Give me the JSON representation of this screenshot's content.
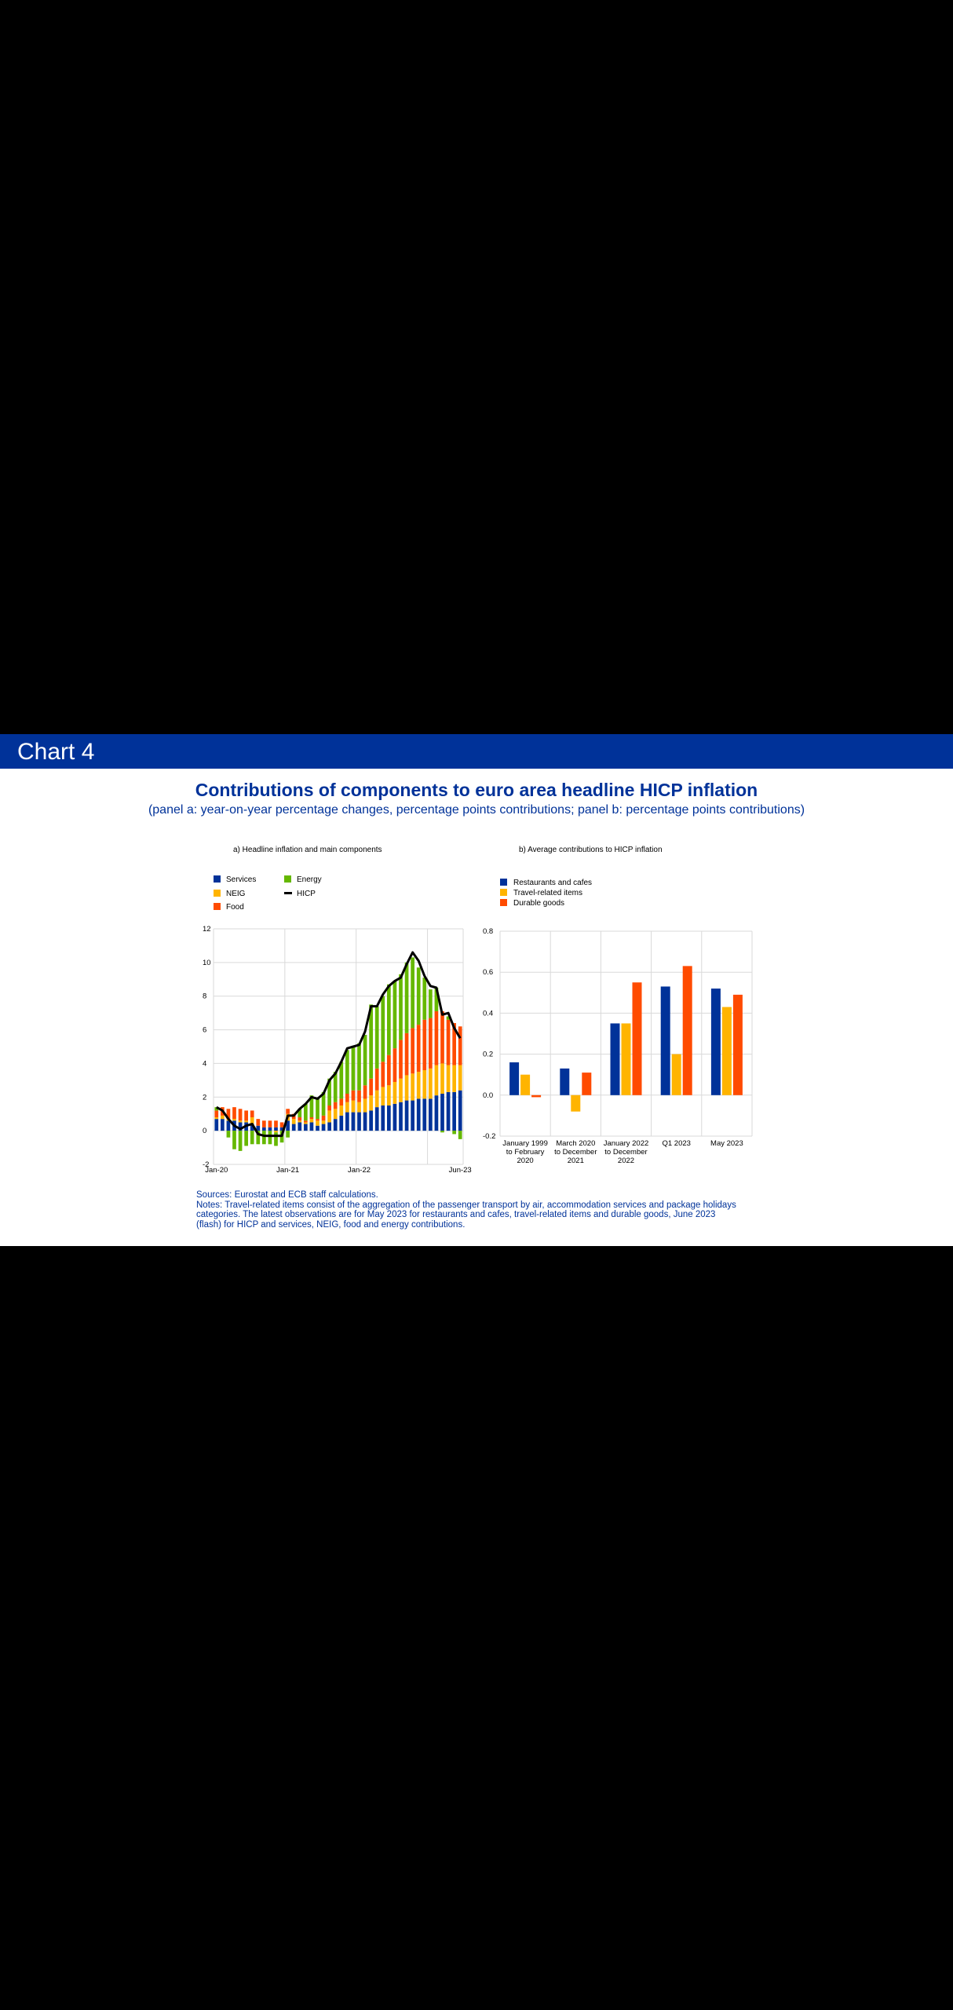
{
  "header": {
    "label": "Chart 4"
  },
  "title": "Contributions of components to euro area headline HICP inflation",
  "subtitle": "(panel a: year-on-year percentage changes, percentage points contributions; panel b: percentage points contributions)",
  "colors": {
    "header_bg": "#003299",
    "services": "#003299",
    "neig": "#FFB400",
    "food": "#FF4B00",
    "energy": "#65B800",
    "hicp": "#000000",
    "restaurants": "#003299",
    "travel": "#FFB400",
    "durable": "#FF4B00"
  },
  "chart_data": [
    {
      "type": "stacked-bar-line",
      "title": "a) Headline inflation and main components",
      "legend": [
        "Services",
        "NEIG",
        "Food",
        "Energy",
        "HICP"
      ],
      "ylim": [
        -2,
        12
      ],
      "yticks": [
        "12",
        "10",
        "8",
        "6",
        "4",
        "2",
        "0",
        "-2"
      ],
      "xtick_labels": [
        "Jan-20",
        "Jan-21",
        "Jan-22",
        "Jun-23"
      ],
      "x": [
        "2020-01",
        "2020-02",
        "2020-03",
        "2020-04",
        "2020-05",
        "2020-06",
        "2020-07",
        "2020-08",
        "2020-09",
        "2020-10",
        "2020-11",
        "2020-12",
        "2021-01",
        "2021-02",
        "2021-03",
        "2021-04",
        "2021-05",
        "2021-06",
        "2021-07",
        "2021-08",
        "2021-09",
        "2021-10",
        "2021-11",
        "2021-12",
        "2022-01",
        "2022-02",
        "2022-03",
        "2022-04",
        "2022-05",
        "2022-06",
        "2022-07",
        "2022-08",
        "2022-09",
        "2022-10",
        "2022-11",
        "2022-12",
        "2023-01",
        "2023-02",
        "2023-03",
        "2023-04",
        "2023-05",
        "2023-06"
      ],
      "series": [
        {
          "name": "Services",
          "values": [
            0.7,
            0.7,
            0.6,
            0.6,
            0.5,
            0.5,
            0.4,
            0.3,
            0.2,
            0.2,
            0.2,
            0.2,
            0.6,
            0.4,
            0.5,
            0.4,
            0.5,
            0.3,
            0.4,
            0.5,
            0.7,
            0.9,
            1.1,
            1.1,
            1.1,
            1.1,
            1.2,
            1.4,
            1.5,
            1.5,
            1.6,
            1.7,
            1.8,
            1.8,
            1.9,
            1.9,
            1.9,
            2.1,
            2.2,
            2.3,
            2.3,
            2.4
          ]
        },
        {
          "name": "NEIG",
          "values": [
            0.1,
            0.2,
            0.1,
            0.1,
            0.1,
            0.1,
            0.4,
            -0.0,
            -0.0,
            -0.0,
            -0.1,
            0.0,
            0.4,
            0.3,
            0.1,
            0.1,
            0.2,
            0.3,
            0.2,
            0.7,
            0.6,
            0.6,
            0.6,
            0.7,
            0.6,
            0.8,
            0.9,
            1.0,
            1.1,
            1.2,
            1.3,
            1.4,
            1.5,
            1.6,
            1.6,
            1.7,
            1.8,
            1.8,
            1.8,
            1.6,
            1.6,
            1.5
          ]
        },
        {
          "name": "Food",
          "values": [
            0.4,
            0.5,
            0.6,
            0.7,
            0.7,
            0.6,
            0.4,
            0.4,
            0.4,
            0.4,
            0.4,
            0.3,
            0.3,
            0.3,
            0.2,
            0.1,
            0.1,
            0.1,
            0.3,
            0.3,
            0.4,
            0.4,
            0.5,
            0.6,
            0.7,
            0.8,
            1.0,
            1.3,
            1.5,
            1.8,
            2.0,
            2.3,
            2.5,
            2.7,
            2.8,
            3.0,
            3.0,
            3.2,
            3.1,
            2.7,
            2.5,
            2.3
          ]
        },
        {
          "name": "Energy",
          "values": [
            0.2,
            -0.0,
            -0.4,
            -1.1,
            -1.2,
            -0.9,
            -0.8,
            -0.8,
            -0.8,
            -0.8,
            -0.8,
            -0.7,
            -0.4,
            -0.0,
            0.5,
            1.0,
            1.3,
            1.2,
            1.4,
            1.6,
            1.8,
            2.2,
            2.6,
            2.6,
            2.8,
            3.0,
            4.4,
            3.7,
            3.9,
            4.2,
            4.0,
            3.9,
            4.2,
            4.2,
            3.4,
            2.5,
            1.7,
            1.4,
            -0.1,
            0.2,
            -0.2,
            -0.5
          ]
        }
      ],
      "line": {
        "name": "HICP",
        "values": [
          1.4,
          1.2,
          0.7,
          0.3,
          0.1,
          0.3,
          0.4,
          -0.2,
          -0.3,
          -0.3,
          -0.3,
          -0.3,
          0.9,
          0.9,
          1.3,
          1.6,
          2.0,
          1.9,
          2.2,
          3.0,
          3.4,
          4.1,
          4.9,
          5.0,
          5.1,
          5.9,
          7.4,
          7.4,
          8.1,
          8.6,
          8.9,
          9.1,
          9.9,
          10.6,
          10.1,
          9.2,
          8.6,
          8.5,
          6.9,
          7.0,
          6.1,
          5.5
        ]
      }
    },
    {
      "type": "bar",
      "title": "b) Average contributions to HICP inflation",
      "legend": [
        "Restaurants and cafes",
        "Travel-related items",
        "Durable goods"
      ],
      "ylim": [
        -0.2,
        0.8
      ],
      "yticks": [
        "0.8",
        "0.6",
        "0.4",
        "0.2",
        "0.0",
        "-0.2"
      ],
      "categories": [
        [
          "January 1999",
          "to February",
          "2020"
        ],
        [
          "March 2020",
          "to December",
          "2021"
        ],
        [
          "January 2022",
          "to December",
          "2022"
        ],
        [
          "Q1 2023"
        ],
        [
          "May 2023"
        ]
      ],
      "series": [
        {
          "name": "Restaurants and cafes",
          "values": [
            0.16,
            0.13,
            0.35,
            0.53,
            0.52
          ]
        },
        {
          "name": "Travel-related items",
          "values": [
            0.1,
            -0.08,
            0.35,
            0.2,
            0.43
          ]
        },
        {
          "name": "Durable goods",
          "values": [
            -0.01,
            0.11,
            0.55,
            0.63,
            0.49
          ]
        }
      ]
    }
  ],
  "notes": {
    "sources": "Sources: Eurostat and ECB staff calculations.",
    "line1": "Notes: Travel-related items consist of the aggregation of the passenger transport by air, accommodation services and package holidays",
    "line2": "categories. The latest observations are for May 2023 for restaurants and cafes, travel-related items and durable goods, June 2023",
    "line3": "(flash) for HICP and services, NEIG, food and energy contributions."
  }
}
